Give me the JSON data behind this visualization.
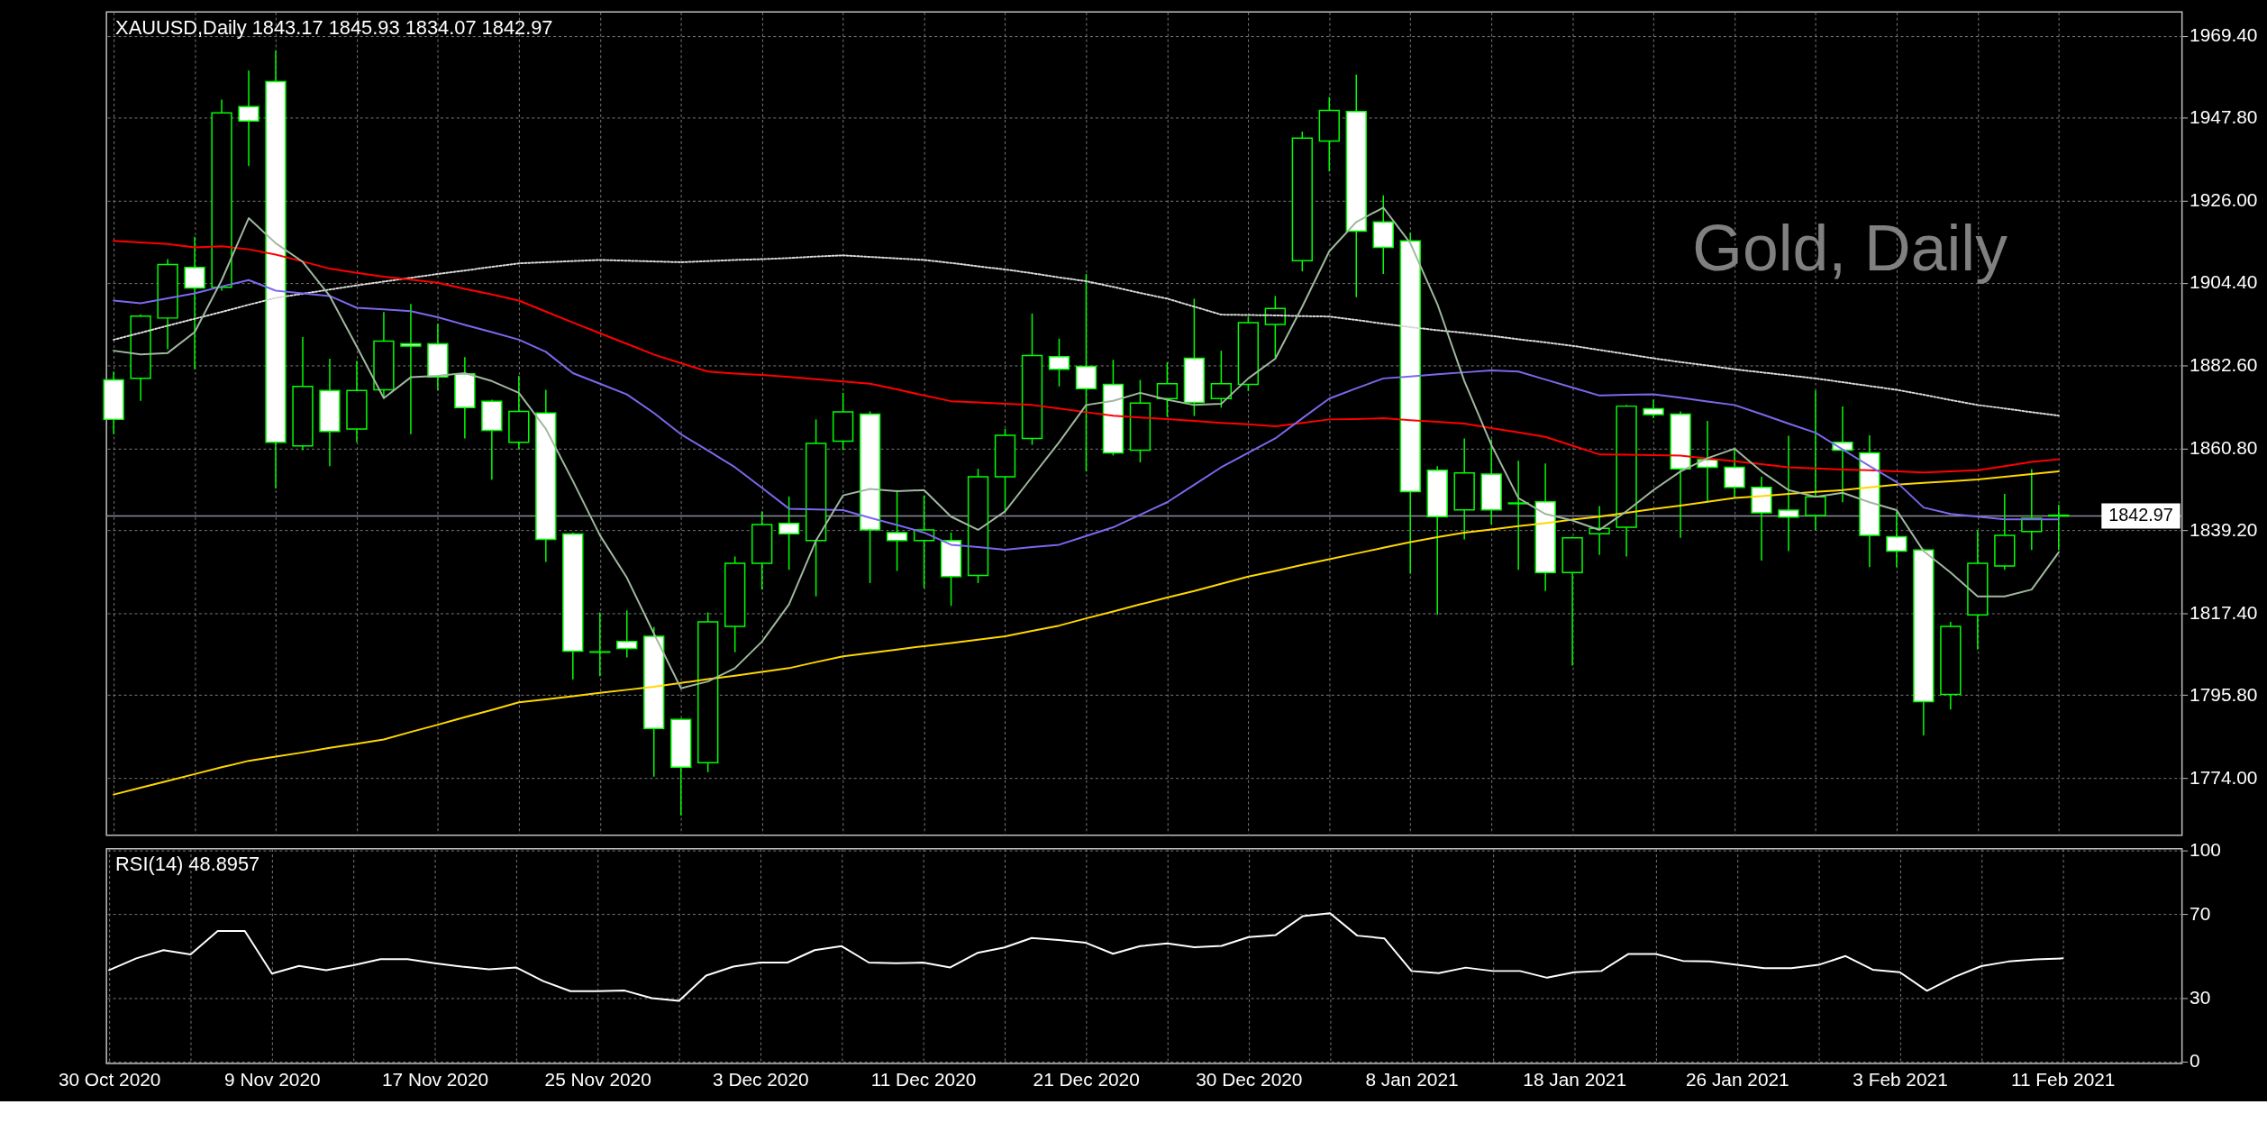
{
  "chart_data": [
    {
      "type": "candlestick",
      "title": "XAUUSD,Daily  1843.17 1845.93 1834.07 1842.97",
      "annotations": [
        "Gold, Daily"
      ],
      "categories": [
        null,
        null,
        null,
        null,
        null,
        null,
        null,
        null,
        null,
        null,
        null,
        null,
        null,
        null,
        null,
        null,
        null,
        null,
        null,
        null,
        null,
        null,
        null,
        null,
        null,
        null,
        null,
        null,
        null,
        null,
        null,
        null,
        null,
        null,
        null,
        null,
        null,
        null,
        null,
        null,
        null,
        null,
        null,
        null,
        null,
        null,
        null,
        null,
        null,
        null,
        null,
        null,
        null,
        null,
        null,
        null,
        null,
        null,
        null,
        null,
        null,
        null,
        null,
        null,
        null,
        null,
        null,
        null,
        null,
        null,
        null,
        null,
        null
      ],
      "ohlc": [
        [
          1878.8,
          1881.0,
          1864.5,
          1868.4
        ],
        [
          1879.2,
          1896.0,
          1873.3,
          1895.6
        ],
        [
          1895.1,
          1910.6,
          1886.9,
          1909.2
        ],
        [
          1908.4,
          1916.5,
          1881.6,
          1903.0
        ],
        [
          1903.2,
          1952.6,
          1902.3,
          1949.1
        ],
        [
          1950.8,
          1960.3,
          1935.1,
          1947.0
        ],
        [
          1957.4,
          1965.5,
          1850.2,
          1862.4
        ],
        [
          1861.4,
          1890.1,
          1860.3,
          1877.1
        ],
        [
          1876.0,
          1884.4,
          1856.1,
          1865.2
        ],
        [
          1865.9,
          1883.8,
          1862.4,
          1876.0
        ],
        [
          1876.2,
          1896.7,
          1874.3,
          1889.0
        ],
        [
          1888.3,
          1898.8,
          1864.5,
          1887.7
        ],
        [
          1888.3,
          1893.6,
          1876.0,
          1879.6
        ],
        [
          1880.4,
          1884.8,
          1863.4,
          1871.5
        ],
        [
          1873.2,
          1873.6,
          1852.5,
          1865.5
        ],
        [
          1862.4,
          1879.9,
          1860.6,
          1870.5
        ],
        [
          1870.1,
          1876.2,
          1830.9,
          1836.8
        ],
        [
          1838.2,
          1838.6,
          1799.9,
          1807.4
        ],
        [
          1807.1,
          1817.6,
          1800.8,
          1807.2
        ],
        [
          1809.9,
          1818.1,
          1805.7,
          1808.1
        ],
        [
          1811.3,
          1813.7,
          1774.3,
          1787.0
        ],
        [
          1789.4,
          1789.6,
          1764.1,
          1776.8
        ],
        [
          1778.0,
          1817.6,
          1775.5,
          1815.1
        ],
        [
          1813.9,
          1832.3,
          1807.1,
          1830.5
        ],
        [
          1830.5,
          1844.2,
          1823.6,
          1840.7
        ],
        [
          1841.0,
          1848.1,
          1828.8,
          1838.3
        ],
        [
          1836.5,
          1868.4,
          1821.8,
          1862.1
        ],
        [
          1862.7,
          1875.4,
          1860.3,
          1870.4
        ],
        [
          1869.8,
          1870.5,
          1825.3,
          1839.3
        ],
        [
          1838.6,
          1849.8,
          1828.5,
          1836.5
        ],
        [
          1836.5,
          1848.4,
          1824.0,
          1839.3
        ],
        [
          1836.5,
          1838.6,
          1819.3,
          1827.0
        ],
        [
          1827.3,
          1855.4,
          1825.3,
          1853.3
        ],
        [
          1853.3,
          1865.9,
          1844.2,
          1864.2
        ],
        [
          1863.4,
          1896.3,
          1861.7,
          1885.2
        ],
        [
          1884.9,
          1889.7,
          1877.1,
          1881.6
        ],
        [
          1882.4,
          1906.7,
          1854.7,
          1876.5
        ],
        [
          1877.6,
          1884.1,
          1858.9,
          1859.6
        ],
        [
          1860.3,
          1878.8,
          1857.1,
          1872.7
        ],
        [
          1873.9,
          1883.4,
          1869.1,
          1877.8
        ],
        [
          1884.5,
          1900.2,
          1869.3,
          1872.9
        ],
        [
          1873.9,
          1886.5,
          1871.5,
          1877.8
        ],
        [
          1877.6,
          1895.5,
          1875.9,
          1893.9
        ],
        [
          1893.4,
          1900.9,
          1884.8,
          1897.6
        ],
        [
          1910.2,
          1944.2,
          1907.4,
          1942.5
        ],
        [
          1941.7,
          1953.3,
          1933.7,
          1949.8
        ],
        [
          1949.5,
          1959.2,
          1900.6,
          1918.0
        ],
        [
          1920.4,
          1927.4,
          1906.7,
          1913.7
        ],
        [
          1915.4,
          1917.6,
          1827.8,
          1849.4
        ],
        [
          1855.0,
          1856.1,
          1816.9,
          1842.8
        ],
        [
          1844.6,
          1863.4,
          1836.8,
          1854.3
        ],
        [
          1854.0,
          1863.1,
          1840.7,
          1844.6
        ],
        [
          1846.2,
          1857.5,
          1828.8,
          1846.4
        ],
        [
          1846.7,
          1856.8,
          1823.2,
          1828.1
        ],
        [
          1828.1,
          1837.5,
          1803.6,
          1837.2
        ],
        [
          1838.3,
          1845.6,
          1832.7,
          1839.7
        ],
        [
          1840.0,
          1872.2,
          1832.3,
          1871.9
        ],
        [
          1871.2,
          1873.6,
          1868.7,
          1869.7
        ],
        [
          1869.8,
          1870.5,
          1837.2,
          1855.4
        ],
        [
          1857.8,
          1868.0,
          1846.6,
          1855.8
        ],
        [
          1855.8,
          1861.0,
          1847.7,
          1850.5
        ],
        [
          1850.5,
          1853.3,
          1831.2,
          1843.8
        ],
        [
          1844.5,
          1864.1,
          1833.7,
          1842.7
        ],
        [
          1843.1,
          1876.0,
          1839.3,
          1848.0
        ],
        [
          1862.4,
          1871.8,
          1846.6,
          1860.3
        ],
        [
          1859.6,
          1864.2,
          1829.5,
          1837.9
        ],
        [
          1837.5,
          1844.2,
          1829.5,
          1833.7
        ],
        [
          1834.0,
          1834.4,
          1785.2,
          1794.1
        ],
        [
          1796.0,
          1815.1,
          1792.0,
          1813.9
        ],
        [
          1816.9,
          1839.3,
          1807.8,
          1830.5
        ],
        [
          1829.8,
          1848.8,
          1828.8,
          1837.9
        ],
        [
          1838.9,
          1855.3,
          1834.0,
          1842.4
        ],
        [
          1843.17,
          1845.93,
          1834.07,
          1842.97
        ]
      ],
      "series": [
        {
          "type": "line",
          "color": "#d8d8d8",
          "line_style": "dotted",
          "values": [
            1889.4,
            1891.2,
            1893.1,
            1894.9,
            1896.7,
            1898.6,
            1900.4,
            1901.5,
            1902.6,
            1903.7,
            1904.7,
            1905.7,
            1906.7,
            1907.6,
            1908.6,
            1909.5,
            1909.8,
            1910.1,
            1910.4,
            1910.2,
            1910.0,
            1909.8,
            1910.1,
            1910.4,
            1910.6,
            1910.9,
            1911.3,
            1911.6,
            1911.2,
            1910.8,
            1910.4,
            1909.6,
            1908.7,
            1907.9,
            1906.9,
            1905.8,
            1904.8,
            1903.3,
            1901.7,
            1900.2,
            1898.1,
            1896.0,
            1895.9,
            1895.8,
            1895.6,
            1895.5,
            1894.6,
            1893.6,
            1892.7,
            1891.9,
            1891.2,
            1890.4,
            1889.5,
            1888.7,
            1887.8,
            1886.7,
            1885.6,
            1884.5,
            1883.5,
            1882.6,
            1881.6,
            1880.8,
            1880.0,
            1879.2,
            1878.2,
            1877.2,
            1876.2,
            1874.9,
            1873.5,
            1872.2,
            1871.3,
            1870.3,
            1869.4
          ]
        },
        {
          "type": "line",
          "color": "#ffd700",
          "line_style": "solid",
          "values": [
            1769.6,
            1771.4,
            1773.2,
            1775.0,
            1776.8,
            1778.5,
            1779.6,
            1780.7,
            1781.9,
            1783.0,
            1784.1,
            1786.1,
            1788.0,
            1790.0,
            1791.9,
            1793.9,
            1794.7,
            1795.5,
            1796.4,
            1797.2,
            1798.0,
            1799.0,
            1800.0,
            1800.9,
            1801.9,
            1802.9,
            1804.5,
            1806.0,
            1806.9,
            1807.8,
            1808.7,
            1809.5,
            1810.4,
            1811.3,
            1812.7,
            1814.1,
            1816.0,
            1817.8,
            1819.7,
            1821.5,
            1823.2,
            1825.1,
            1827.0,
            1828.5,
            1830.1,
            1831.6,
            1833.1,
            1834.6,
            1836.1,
            1837.4,
            1838.6,
            1839.4,
            1840.3,
            1841.1,
            1842.0,
            1842.8,
            1843.8,
            1844.8,
            1845.7,
            1846.7,
            1847.7,
            1848.2,
            1848.8,
            1849.3,
            1849.8,
            1850.5,
            1851.2,
            1851.7,
            1852.1,
            1852.6,
            1853.3,
            1854.0,
            1854.7
          ]
        },
        {
          "type": "line",
          "color": "#ff0000",
          "line_style": "solid",
          "values": [
            1915.4,
            1915.0,
            1914.6,
            1913.7,
            1914.0,
            1913.2,
            1911.8,
            1910.0,
            1908.1,
            1907.0,
            1906.0,
            1905.2,
            1904.4,
            1902.8,
            1901.3,
            1899.7,
            1896.8,
            1893.9,
            1891.1,
            1888.3,
            1885.5,
            1883.2,
            1881.0,
            1880.5,
            1880.1,
            1879.6,
            1879.0,
            1878.4,
            1877.8,
            1876.3,
            1874.7,
            1873.2,
            1872.9,
            1872.5,
            1872.2,
            1871.3,
            1870.3,
            1869.4,
            1868.9,
            1868.5,
            1868.0,
            1867.5,
            1867.1,
            1866.6,
            1867.5,
            1868.4,
            1868.5,
            1868.7,
            1868.2,
            1867.8,
            1867.3,
            1866.1,
            1865.0,
            1863.8,
            1861.5,
            1859.2,
            1859.1,
            1859.0,
            1858.9,
            1858.1,
            1857.4,
            1856.6,
            1855.8,
            1855.5,
            1855.2,
            1855.0,
            1854.7,
            1854.4,
            1854.7,
            1855.0,
            1856.1,
            1857.2,
            1857.9
          ]
        },
        {
          "type": "line",
          "color": "#7b68ee",
          "line_style": "solid",
          "values": [
            1899.7,
            1899.0,
            1900.3,
            1901.6,
            1903.4,
            1905.1,
            1902.3,
            1901.6,
            1900.9,
            1897.8,
            1897.4,
            1896.9,
            1895.3,
            1893.3,
            1891.4,
            1889.4,
            1886.2,
            1880.6,
            1877.8,
            1875.0,
            1870.1,
            1864.5,
            1860.2,
            1855.8,
            1850.4,
            1844.9,
            1844.7,
            1844.5,
            1842.5,
            1840.6,
            1838.6,
            1835.4,
            1834.8,
            1834.1,
            1834.8,
            1835.4,
            1837.7,
            1840.0,
            1843.3,
            1846.6,
            1851.2,
            1855.8,
            1859.6,
            1863.4,
            1868.7,
            1873.9,
            1876.6,
            1879.2,
            1879.7,
            1880.3,
            1880.8,
            1881.3,
            1881.0,
            1878.9,
            1876.8,
            1874.7,
            1874.9,
            1875.0,
            1874.1,
            1873.1,
            1872.2,
            1869.8,
            1867.3,
            1864.9,
            1860.5,
            1856.1,
            1851.9,
            1845.2,
            1843.5,
            1842.8,
            1842.1,
            1842.1,
            1842.1
          ]
        },
        {
          "type": "line",
          "color": "#9fb89f",
          "line_style": "solid",
          "values": [
            1886.5,
            1885.5,
            1885.9,
            1891.4,
            1905.1,
            1921.4,
            1914.8,
            1909.9,
            1900.9,
            1887.6,
            1874.0,
            1879.5,
            1879.9,
            1880.6,
            1878.5,
            1875.4,
            1865.9,
            1852.2,
            1837.9,
            1826.7,
            1812.0,
            1797.6,
            1799.4,
            1802.9,
            1809.9,
            1819.7,
            1836.5,
            1848.4,
            1850.1,
            1849.5,
            1849.8,
            1842.8,
            1839.3,
            1844.2,
            1853.3,
            1862.4,
            1872.2,
            1873.3,
            1875.4,
            1873.6,
            1872.2,
            1872.5,
            1879.2,
            1884.4,
            1898.1,
            1912.7,
            1920.4,
            1924.2,
            1914.8,
            1898.8,
            1878.5,
            1861.7,
            1847.7,
            1843.5,
            1841.8,
            1839.3,
            1844.2,
            1849.8,
            1854.7,
            1858.2,
            1860.7,
            1854.7,
            1849.8,
            1848.0,
            1849.1,
            1846.6,
            1844.5,
            1833.7,
            1828.1,
            1821.8,
            1821.8,
            1823.6,
            1833.4
          ]
        }
      ],
      "ylim": [
        1758.9,
        1975.7
      ],
      "tick_labels": "y",
      "yticks": [
        {
          "value": 1774.0,
          "label": "1774.00"
        },
        {
          "value": 1795.8,
          "label": "1795.80"
        },
        {
          "value": 1817.4,
          "label": "1817.40"
        },
        {
          "value": 1839.2,
          "label": "1839.20"
        },
        {
          "value": 1860.8,
          "label": "1860.80"
        },
        {
          "value": 1882.6,
          "label": "1882.60"
        },
        {
          "value": 1904.4,
          "label": "1904.40"
        },
        {
          "value": 1926.0,
          "label": "1926.00"
        },
        {
          "value": 1947.8,
          "label": "1947.80"
        },
        {
          "value": 1969.4,
          "label": "1969.40"
        }
      ],
      "ref_lines": [
        {
          "axis": "y",
          "value": 1842.97,
          "label": "1842.97",
          "color": "#8c8c9c"
        }
      ],
      "grid": true
    },
    {
      "type": "line",
      "title": "RSI(14) 48.8957",
      "categories": [
        "30 Oct 2020",
        null,
        null,
        null,
        null,
        null,
        "9 Nov 2020",
        null,
        null,
        null,
        null,
        null,
        "17 Nov 2020",
        null,
        null,
        null,
        null,
        null,
        "25 Nov 2020",
        null,
        null,
        null,
        null,
        null,
        "3 Dec 2020",
        null,
        null,
        null,
        null,
        null,
        "11 Dec 2020",
        null,
        null,
        null,
        null,
        null,
        "21 Dec 2020",
        null,
        null,
        null,
        null,
        null,
        "30 Dec 2020",
        null,
        null,
        null,
        null,
        null,
        "8 Jan 2021",
        null,
        null,
        null,
        null,
        null,
        "18 Jan 2021",
        null,
        null,
        null,
        null,
        null,
        "26 Jan 2021",
        null,
        null,
        null,
        null,
        null,
        "3 Feb 2021",
        null,
        null,
        null,
        null,
        null,
        "11 Feb 2021"
      ],
      "series": [
        {
          "color": "#ffffff",
          "values": [
            43.3,
            48.9,
            52.8,
            50.8,
            61.9,
            61.9,
            41.7,
            45.3,
            43.3,
            45.6,
            48.5,
            48.5,
            46.6,
            45.0,
            43.7,
            44.6,
            38.1,
            33.3,
            33.3,
            33.6,
            30.0,
            28.7,
            40.7,
            45.0,
            46.9,
            46.9,
            52.8,
            54.7,
            46.9,
            46.6,
            46.9,
            44.6,
            51.5,
            54.1,
            58.6,
            57.6,
            56.3,
            51.1,
            54.7,
            56.0,
            54.2,
            54.8,
            59.0,
            60.0,
            69.0,
            70.3,
            59.7,
            58.4,
            42.9,
            41.9,
            44.5,
            42.9,
            42.9,
            39.7,
            42.3,
            42.9,
            51.0,
            51.0,
            47.7,
            47.4,
            45.8,
            44.2,
            44.2,
            45.8,
            50.0,
            43.5,
            42.3,
            33.5,
            40.0,
            45.2,
            47.4,
            48.4,
            48.9
          ]
        }
      ],
      "ylim": [
        -1,
        101
      ],
      "yticks": [
        0,
        30,
        70,
        100
      ],
      "grid": true
    }
  ]
}
